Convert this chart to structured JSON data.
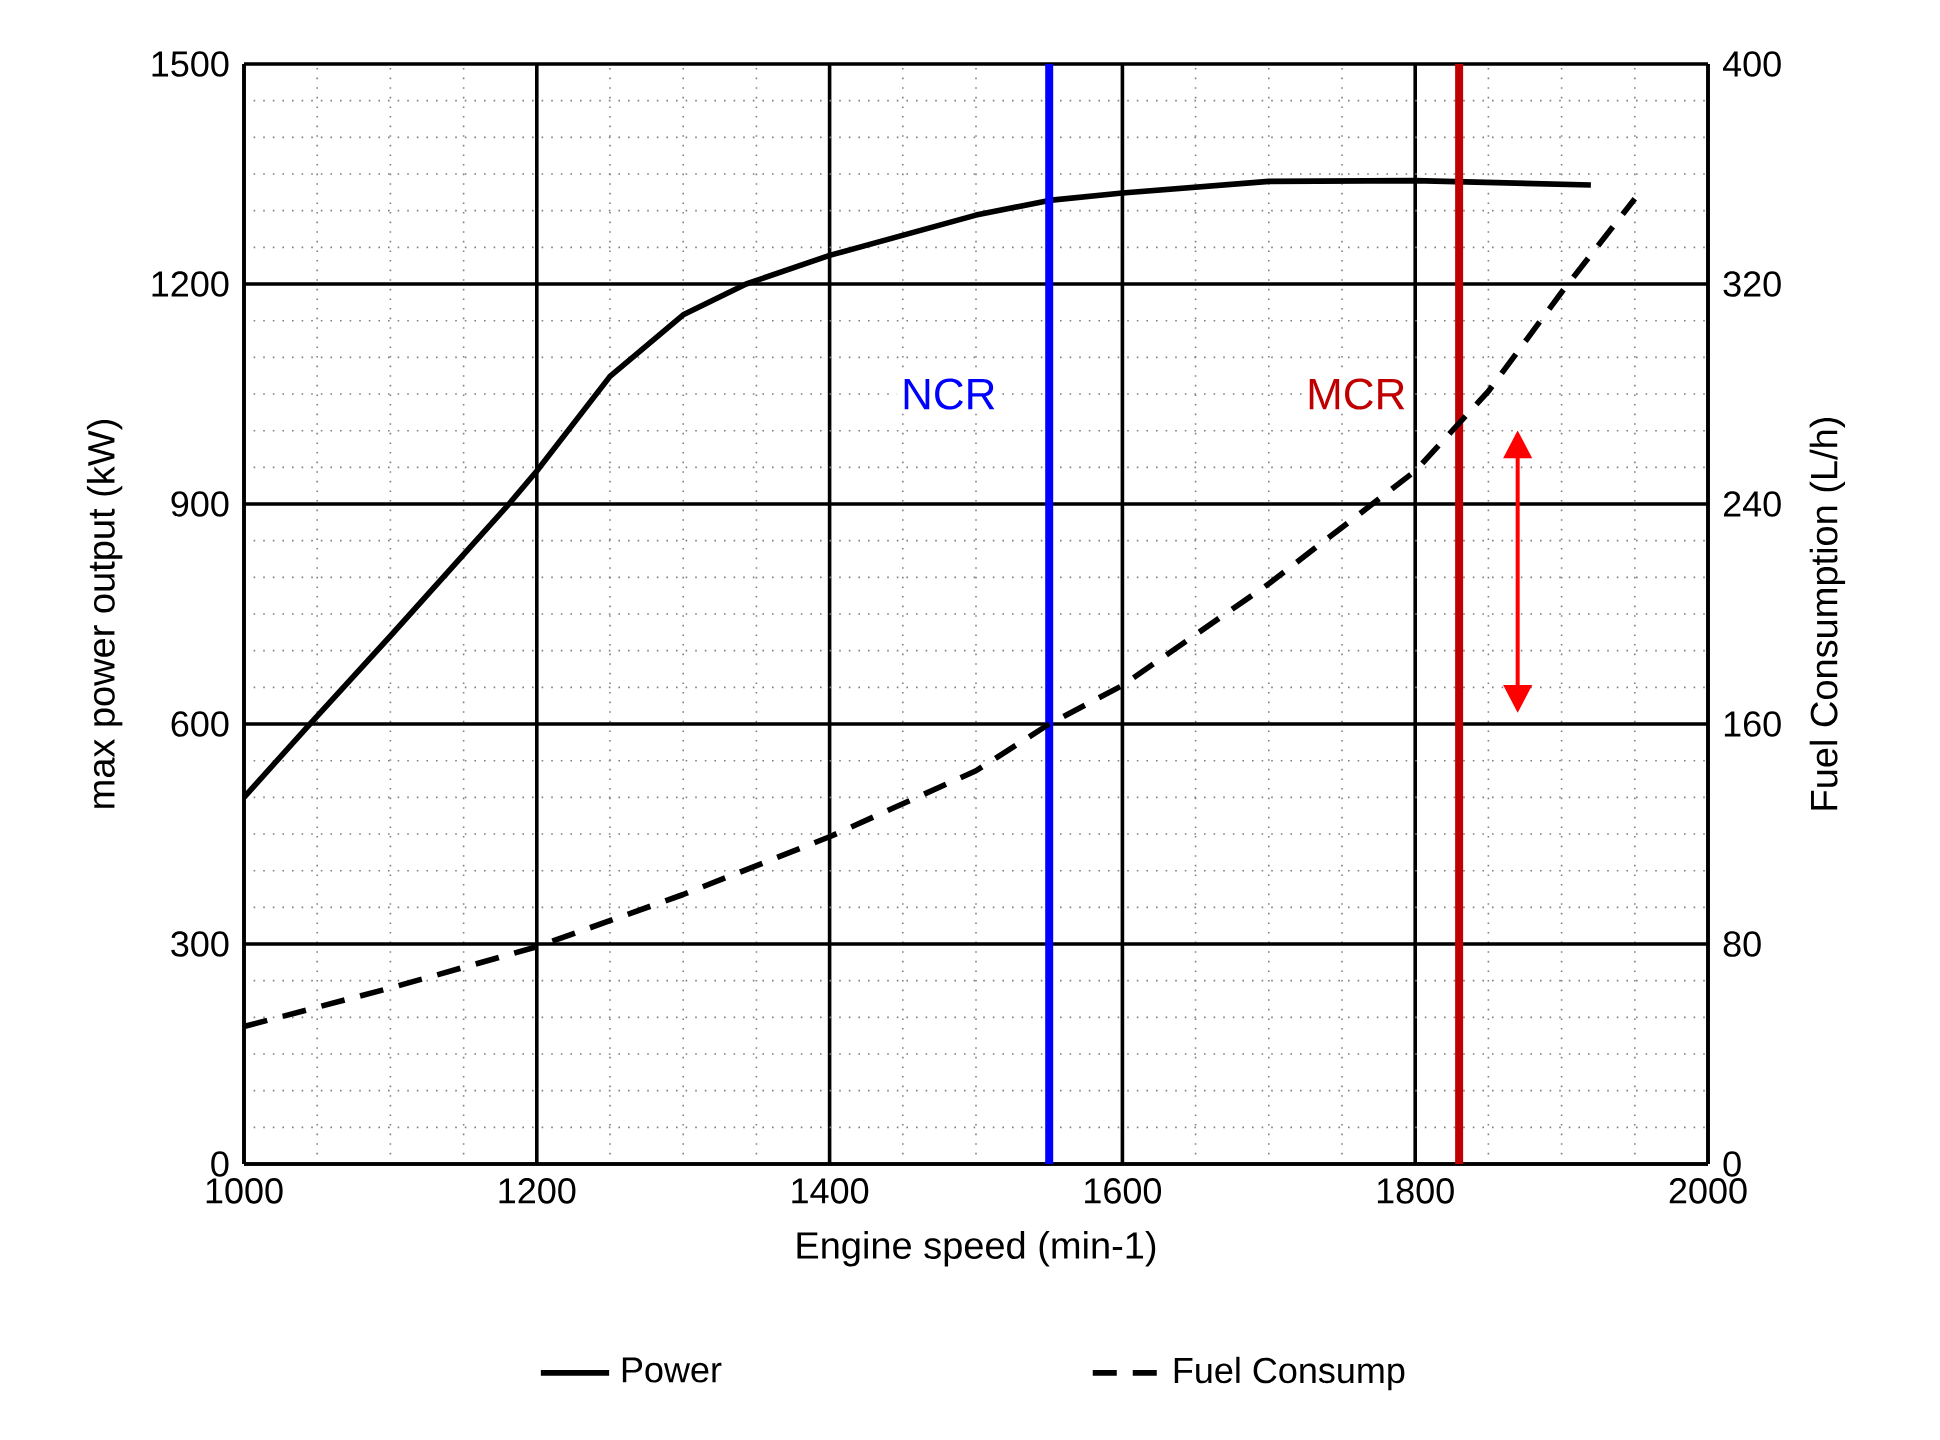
{
  "chart_data": {
    "type": "line",
    "xlabel": "Engine speed (min-1)",
    "ylabel": "max power output (kW)",
    "y2label": "Fuel Consumption (L/h)",
    "xlim": [
      1000,
      2000
    ],
    "xticks": [
      1000,
      1200,
      1400,
      1600,
      1800,
      2000
    ],
    "ylim": [
      0,
      1500
    ],
    "yticks": [
      0,
      300,
      600,
      900,
      1200,
      1500
    ],
    "y2lim": [
      0,
      400
    ],
    "y2ticks": [
      0,
      80,
      160,
      240,
      320,
      400
    ],
    "grid": true,
    "legend": "bottom",
    "series": [
      {
        "name": "Power",
        "color": "#000000",
        "line_style": "solid",
        "x": [
          1000,
          1045,
          1100,
          1181,
          1200,
          1250,
          1300,
          1343,
          1400,
          1500,
          1550,
          1600,
          1700,
          1800,
          1920
        ],
        "values": [
          500,
          600,
          720,
          900,
          945,
          1074,
          1158,
          1200,
          1239,
          1294,
          1314,
          1324,
          1340,
          1341,
          1335
        ]
      },
      {
        "name": "Fuel Consump",
        "color": "#000000",
        "line_style": "dashed",
        "axis": "y2",
        "x": [
          1000,
          1100,
          1200,
          1300,
          1400,
          1500,
          1550,
          1600,
          1700,
          1800,
          1850,
          1900,
          1950
        ],
        "values": [
          50,
          64,
          79,
          98,
          119,
          143,
          160,
          174,
          211,
          252,
          281,
          317,
          351
        ]
      }
    ],
    "ref_lines": [
      {
        "axis": "x",
        "value": 1550,
        "label": "NCR",
        "color": "#0000ff"
      },
      {
        "axis": "x",
        "value": 1830,
        "label": "MCR",
        "color": "#c00000"
      }
    ]
  }
}
